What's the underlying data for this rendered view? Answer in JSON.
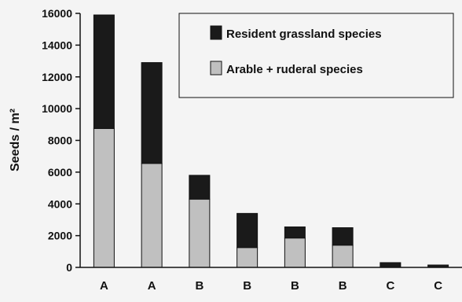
{
  "chart_data": {
    "type": "bar",
    "stacked": true,
    "categories": [
      "A",
      "A",
      "B",
      "B",
      "B",
      "B",
      "C",
      "C"
    ],
    "series": [
      {
        "name": "Arable + ruderal species",
        "color": "#c0c0c0",
        "values": [
          8750,
          6550,
          4300,
          1250,
          1850,
          1400,
          0,
          0
        ]
      },
      {
        "name": "Resident grassland species",
        "color": "#1a1a1a",
        "values": [
          7150,
          6350,
          1500,
          2150,
          700,
          1100,
          300,
          150
        ]
      }
    ],
    "ylabel": "Seeds / m²",
    "xlabel": "",
    "title": "",
    "ylim": [
      0,
      16000
    ],
    "yticks": [
      0,
      2000,
      4000,
      6000,
      8000,
      10000,
      12000,
      14000,
      16000
    ],
    "grid": false,
    "legend": {
      "placement": "top-right",
      "entries": [
        "Resident grassland species",
        "Arable + ruderal species"
      ]
    }
  }
}
